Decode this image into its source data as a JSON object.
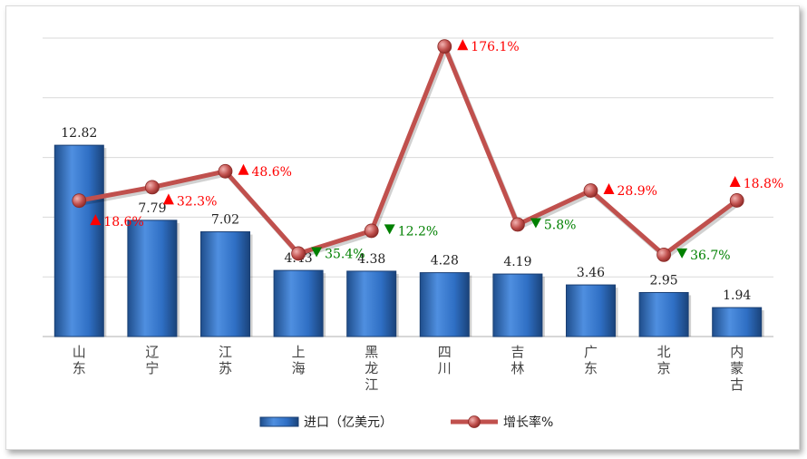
{
  "chart_data": {
    "type": "bar",
    "categories": [
      "山东",
      "辽宁",
      "江苏",
      "上海",
      "黑龙江",
      "四川",
      "吉林",
      "广东",
      "北京",
      "内蒙古"
    ],
    "series": [
      {
        "name": "进口（亿美元）",
        "type": "bar",
        "values": [
          12.82,
          7.79,
          7.02,
          4.43,
          4.38,
          4.28,
          4.19,
          3.46,
          2.95,
          1.94
        ],
        "color": "#2f6fc4"
      },
      {
        "name": "增长率%",
        "type": "line",
        "values": [
          18.6,
          32.3,
          48.6,
          -35.4,
          -12.2,
          176.1,
          -5.8,
          28.9,
          -36.7,
          18.8
        ],
        "labels": [
          "18.6%",
          "32.3%",
          "48.6%",
          "35.4%",
          "12.2%",
          "176.1%",
          "5.8%",
          "28.9%",
          "36.7%",
          "18.8%"
        ],
        "color": "#c0504d"
      }
    ],
    "colors": {
      "up": "#ff0000",
      "down": "#008000",
      "grid": "#d9d9d9"
    },
    "grid": true,
    "legend": "bottom-center"
  }
}
